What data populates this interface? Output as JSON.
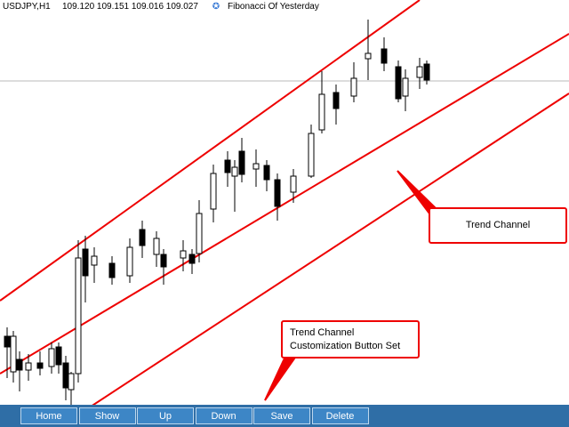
{
  "header": {
    "symbol": "USDJPY,H1",
    "prices": "109.120 109.151 109.016 109.027",
    "indicator": "Fibonacci Of Yesterday"
  },
  "callouts": [
    {
      "text": "Trend Channel"
    },
    {
      "lines": [
        "Trend Channel",
        "Customization Button Set"
      ]
    }
  ],
  "buttons": [
    "Home",
    "Show",
    "Up",
    "Down",
    "Save",
    "Delete"
  ]
}
